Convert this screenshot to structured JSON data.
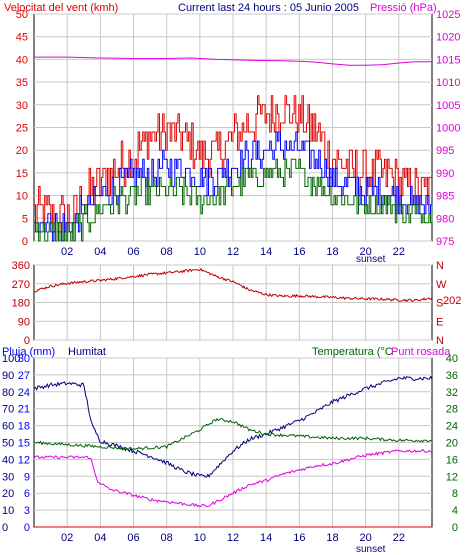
{
  "colors": {
    "red": "#e00000",
    "darkred": "#c00000",
    "blue": "#0000ff",
    "navy": "#000080",
    "green": "#006400",
    "magenta": "#e000e0",
    "grid": "#c8c8c8",
    "black": "#000000"
  },
  "chart_data": [
    {
      "type": "line",
      "title": "Current last 24 hours : 05 Junio 2005",
      "left_axis_label": "Velocitat del vent (kmh)",
      "right_axis_label": "Pressió (hPa)",
      "xlabel": "sunset",
      "x_ticks": [
        "02",
        "04",
        "06",
        "08",
        "10",
        "12",
        "14",
        "16",
        "18",
        "20",
        "22"
      ],
      "xlim": [
        0,
        24
      ],
      "ylim_left": [
        0,
        50
      ],
      "ylim_right": [
        975,
        1025
      ],
      "left_ticks": [
        0,
        5,
        10,
        15,
        20,
        25,
        30,
        35,
        40,
        45,
        50
      ],
      "right_ticks": [
        975,
        980,
        985,
        990,
        995,
        1000,
        1005,
        1010,
        1015,
        1020,
        1025
      ],
      "grid": true,
      "series": [
        {
          "name": "Velocitat del vent (kmh)",
          "axis": "left",
          "color": "#e00000",
          "style": "noisy-step",
          "x": [
            0,
            1,
            2,
            3,
            4,
            5,
            6,
            7,
            8,
            9,
            10,
            11,
            12,
            13,
            14,
            15,
            16,
            17,
            18,
            19,
            20,
            21,
            22,
            23,
            24
          ],
          "y": [
            7,
            6,
            5,
            9,
            13,
            16,
            19,
            23,
            24,
            23,
            19,
            19,
            23,
            26,
            28,
            29,
            27,
            24,
            18,
            16,
            15,
            15,
            13,
            11,
            11
          ]
        },
        {
          "axis": "left",
          "color": "#0000ff",
          "style": "noisy-step",
          "x": [
            0,
            1,
            2,
            3,
            4,
            5,
            6,
            7,
            8,
            9,
            10,
            11,
            12,
            13,
            14,
            15,
            16,
            17,
            18,
            19,
            20,
            21,
            22,
            23,
            24
          ],
          "y": [
            5,
            4,
            3,
            7,
            10,
            12,
            14,
            15,
            16,
            16,
            14,
            14,
            17,
            19,
            20,
            21,
            20,
            18,
            14,
            12,
            11,
            11,
            10,
            8,
            8
          ]
        },
        {
          "axis": "left",
          "color": "#006400",
          "style": "noisy-step",
          "x": [
            0,
            1,
            2,
            3,
            4,
            5,
            6,
            7,
            8,
            9,
            10,
            11,
            12,
            13,
            14,
            15,
            16,
            17,
            18,
            19,
            20,
            21,
            22,
            23,
            24
          ],
          "y": [
            3,
            2,
            1,
            4,
            7,
            9,
            10,
            11,
            11,
            11,
            9,
            10,
            12,
            14,
            15,
            15,
            15,
            13,
            10,
            9,
            8,
            8,
            7,
            6,
            6
          ]
        },
        {
          "name": "Pressió (hPa)",
          "axis": "right",
          "color": "#e000e0",
          "style": "line",
          "x": [
            0,
            2,
            4,
            6,
            8,
            9.5,
            11,
            13,
            15,
            16,
            17,
            18,
            19,
            20,
            21,
            22,
            23,
            24
          ],
          "y": [
            1015.5,
            1015.5,
            1015.3,
            1015.2,
            1015.2,
            1015.3,
            1015.0,
            1014.8,
            1014.7,
            1014.6,
            1014.4,
            1014.0,
            1013.7,
            1013.7,
            1013.8,
            1014.2,
            1014.5,
            1014.5
          ]
        }
      ]
    },
    {
      "type": "line",
      "left_ticks": [
        0,
        90,
        180,
        270,
        360
      ],
      "right_labels": [
        "N",
        "W",
        "S",
        "E",
        "N"
      ],
      "current_label": "202",
      "xlim": [
        0,
        24
      ],
      "ylim": [
        0,
        360
      ],
      "grid": true,
      "series": [
        {
          "axis": "left",
          "color": "#c00000",
          "x": [
            0,
            1,
            2,
            3,
            4,
            5,
            6,
            7,
            8,
            9,
            10,
            11,
            12,
            13,
            14,
            15,
            16,
            17,
            18,
            19,
            20,
            21,
            22,
            23,
            24
          ],
          "y": [
            235,
            258,
            272,
            280,
            286,
            295,
            305,
            315,
            322,
            330,
            340,
            305,
            280,
            240,
            218,
            210,
            212,
            208,
            205,
            200,
            198,
            196,
            192,
            190,
            202
          ]
        }
      ]
    },
    {
      "type": "line",
      "labels": [
        "Pluja (mm)",
        "Humitat",
        "Temperatura (°C",
        "Punt rosada"
      ],
      "xlabel": "sunset",
      "x_ticks": [
        "02",
        "04",
        "06",
        "08",
        "10",
        "12",
        "14",
        "16",
        "18",
        "20",
        "22"
      ],
      "xlim": [
        0,
        24
      ],
      "left_ticks_outer": [
        0,
        10,
        20,
        30,
        40,
        50,
        60,
        70,
        80,
        90,
        100
      ],
      "left_ticks_inner": [
        0,
        3,
        6,
        9,
        12,
        15,
        18,
        21,
        24,
        27,
        30
      ],
      "right_ticks": [
        0,
        4,
        8,
        12,
        16,
        20,
        24,
        28,
        32,
        36,
        40
      ],
      "ylim_humidity": [
        0,
        100
      ],
      "ylim_rain": [
        0,
        30
      ],
      "ylim_temperature": [
        0,
        40
      ],
      "grid": true,
      "series": [
        {
          "name": "Humitat",
          "axis": "humidity",
          "color": "#000080",
          "x": [
            0,
            1,
            2,
            3,
            3.5,
            4,
            5,
            6,
            7,
            8,
            9,
            10,
            10.5,
            11,
            12,
            13,
            14,
            15,
            16,
            17,
            18,
            19,
            20,
            21,
            22,
            23,
            24
          ],
          "y": [
            82,
            84,
            85,
            84,
            60,
            51,
            48,
            45,
            42,
            38,
            33,
            30,
            30,
            35,
            45,
            52,
            55,
            59,
            63,
            68,
            74,
            78,
            82,
            85,
            88,
            88,
            88
          ]
        },
        {
          "name": "Temperatura (°C",
          "axis": "temperature",
          "color": "#006400",
          "x": [
            0,
            2,
            4,
            6,
            8,
            9,
            10,
            11,
            12,
            13,
            14,
            16,
            18,
            20,
            22,
            24
          ],
          "y": [
            20,
            19.5,
            19,
            18.5,
            19,
            21,
            23,
            25.5,
            25,
            23,
            22,
            21.5,
            21,
            21,
            20.5,
            20.5
          ]
        },
        {
          "name": "Punt rosada",
          "axis": "temperature",
          "color": "#e000e0",
          "x": [
            0,
            2,
            3.4,
            3.8,
            4.5,
            6,
            7,
            8,
            9,
            10,
            10.5,
            11,
            12,
            13,
            14,
            15,
            16,
            17,
            18,
            19,
            20,
            22,
            24
          ],
          "y": [
            16.5,
            16.5,
            16.5,
            11,
            9,
            7.5,
            6.5,
            6,
            5.5,
            5,
            5,
            6,
            8,
            10,
            11,
            12.5,
            13.5,
            14.5,
            15,
            16,
            17,
            18,
            18
          ]
        },
        {
          "name": "Pluja (mm)",
          "axis": "rain",
          "color": "#e00000",
          "x": [
            0,
            24
          ],
          "y": [
            0,
            0
          ]
        }
      ]
    }
  ]
}
